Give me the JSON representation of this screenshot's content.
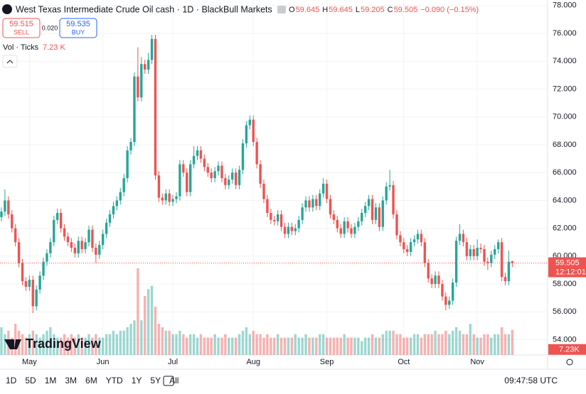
{
  "header": {
    "title": "West Texas Intermediate Crude Oil cash · 1D · BlackBull Markets",
    "ohlc": [
      {
        "key": "O",
        "value": "59.645"
      },
      {
        "key": "H",
        "value": "59.645"
      },
      {
        "key": "L",
        "value": "59.205"
      },
      {
        "key": "C",
        "value": "59.505"
      }
    ],
    "change": "−0.090 (−0.15%)",
    "sell_price": "59.515",
    "sell": "SELL",
    "spread": "0.020",
    "buy_price": "59.535",
    "buy": "BUY",
    "volume_legend": "Vol · Ticks",
    "volume_legend_value": "7.23 K",
    "logo": "TradingView"
  },
  "chart_data": {
    "type": "candlestick",
    "up_color": "#26a69a",
    "down_color": "#ef5350",
    "grid": true,
    "ylim": [
      52.9,
      78.4
    ],
    "yticks": [
      {
        "value": 54,
        "label": "54.000"
      },
      {
        "value": 56,
        "label": "56.000"
      },
      {
        "value": 58,
        "label": "58.000"
      },
      {
        "value": 60,
        "label": "60.000"
      },
      {
        "value": 62,
        "label": "62.000"
      },
      {
        "value": 64,
        "label": "64.000"
      },
      {
        "value": 66,
        "label": "66.000"
      },
      {
        "value": 68,
        "label": "68.000"
      },
      {
        "value": 70,
        "label": "70.000"
      },
      {
        "value": 72,
        "label": "72.000"
      },
      {
        "value": 74,
        "label": "74.000"
      },
      {
        "value": 76,
        "label": "76.000"
      },
      {
        "value": 78,
        "label": "78.000"
      }
    ],
    "xticks": [
      {
        "value": 8,
        "label": "May"
      },
      {
        "value": 29,
        "label": "Jun"
      },
      {
        "value": 49,
        "label": "Jul"
      },
      {
        "value": 72,
        "label": "Aug"
      },
      {
        "value": 93,
        "label": "Sep"
      },
      {
        "value": 115,
        "label": "Oct"
      },
      {
        "value": 136,
        "label": "Nov"
      }
    ],
    "ohlc": [
      [
        62.8,
        63.5,
        62.5,
        63.2
      ],
      [
        63.2,
        64.8,
        62.9,
        64.0
      ],
      [
        64.0,
        64.3,
        62.7,
        63.0
      ],
      [
        63.0,
        63.3,
        61.7,
        62.0
      ],
      [
        62.0,
        62.3,
        60.7,
        61.0
      ],
      [
        61.0,
        61.3,
        59.2,
        59.5
      ],
      [
        59.5,
        59.8,
        57.9,
        58.2
      ],
      [
        58.2,
        58.5,
        57.5,
        57.8
      ],
      [
        57.8,
        58.6,
        57.5,
        58.3
      ],
      [
        58.3,
        58.6,
        55.9,
        56.4
      ],
      [
        56.4,
        57.9,
        56.1,
        57.6
      ],
      [
        57.6,
        58.9,
        57.3,
        58.6
      ],
      [
        58.6,
        59.9,
        58.3,
        59.6
      ],
      [
        59.6,
        60.5,
        59.3,
        60.2
      ],
      [
        60.2,
        61.3,
        59.9,
        61.0
      ],
      [
        61.0,
        62.9,
        60.7,
        62.6
      ],
      [
        62.6,
        63.4,
        62.3,
        63.1
      ],
      [
        63.1,
        63.4,
        61.7,
        62.0
      ],
      [
        62.0,
        62.3,
        61.1,
        61.4
      ],
      [
        61.4,
        61.7,
        60.7,
        61.0
      ],
      [
        61.0,
        61.3,
        60.3,
        60.6
      ],
      [
        60.6,
        60.9,
        59.9,
        60.2
      ],
      [
        60.2,
        61.4,
        59.9,
        61.1
      ],
      [
        61.1,
        61.4,
        60.2,
        60.5
      ],
      [
        60.5,
        61.3,
        60.2,
        61.0
      ],
      [
        61.0,
        62.2,
        60.7,
        61.9
      ],
      [
        61.9,
        62.2,
        60.3,
        60.6
      ],
      [
        60.6,
        60.9,
        59.5,
        60.1
      ],
      [
        60.1,
        61.1,
        59.8,
        60.8
      ],
      [
        60.8,
        61.9,
        60.5,
        61.6
      ],
      [
        61.6,
        62.7,
        61.3,
        62.4
      ],
      [
        62.4,
        63.3,
        62.1,
        63.0
      ],
      [
        63.0,
        63.9,
        62.7,
        63.6
      ],
      [
        63.6,
        64.3,
        63.3,
        64.0
      ],
      [
        64.0,
        64.9,
        63.7,
        64.6
      ],
      [
        64.6,
        65.9,
        64.3,
        65.6
      ],
      [
        65.6,
        67.9,
        65.3,
        67.6
      ],
      [
        67.6,
        68.5,
        67.3,
        68.2
      ],
      [
        68.2,
        73.2,
        67.9,
        72.9
      ],
      [
        72.9,
        75.0,
        71.1,
        71.4
      ],
      [
        71.4,
        74.3,
        71.1,
        73.8
      ],
      [
        73.8,
        74.1,
        73.1,
        73.4
      ],
      [
        73.4,
        74.6,
        73.1,
        74.1
      ],
      [
        74.1,
        75.9,
        73.8,
        75.6
      ],
      [
        75.6,
        75.9,
        65.5,
        65.8
      ],
      [
        65.8,
        66.1,
        63.9,
        64.2
      ],
      [
        64.2,
        64.5,
        63.7,
        64.0
      ],
      [
        64.0,
        64.8,
        63.7,
        64.5
      ],
      [
        64.5,
        64.8,
        63.6,
        63.9
      ],
      [
        63.9,
        64.4,
        63.6,
        64.1
      ],
      [
        64.1,
        64.6,
        63.8,
        64.3
      ],
      [
        64.3,
        66.9,
        64.0,
        66.6
      ],
      [
        66.6,
        66.9,
        65.7,
        66.0
      ],
      [
        66.0,
        66.3,
        64.3,
        64.6
      ],
      [
        64.6,
        66.9,
        64.3,
        66.6
      ],
      [
        66.6,
        67.9,
        66.3,
        67.2
      ],
      [
        67.2,
        67.9,
        66.9,
        67.6
      ],
      [
        67.6,
        67.9,
        66.7,
        67.0
      ],
      [
        67.0,
        67.3,
        66.1,
        66.4
      ],
      [
        66.4,
        66.7,
        65.7,
        66.0
      ],
      [
        66.0,
        66.3,
        65.3,
        65.6
      ],
      [
        65.6,
        66.4,
        65.3,
        66.1
      ],
      [
        66.1,
        66.8,
        65.8,
        66.5
      ],
      [
        66.5,
        66.8,
        65.3,
        65.6
      ],
      [
        65.6,
        65.9,
        64.8,
        65.1
      ],
      [
        65.1,
        65.8,
        64.8,
        65.5
      ],
      [
        65.5,
        66.3,
        65.2,
        66.0
      ],
      [
        66.0,
        66.3,
        64.8,
        65.1
      ],
      [
        65.1,
        66.5,
        64.8,
        66.2
      ],
      [
        66.2,
        68.4,
        65.9,
        68.1
      ],
      [
        68.1,
        69.7,
        67.8,
        69.4
      ],
      [
        69.4,
        70.1,
        69.1,
        69.8
      ],
      [
        69.8,
        70.1,
        67.9,
        68.2
      ],
      [
        68.2,
        68.5,
        66.3,
        66.6
      ],
      [
        66.6,
        66.9,
        64.9,
        65.2
      ],
      [
        65.2,
        65.5,
        63.8,
        64.1
      ],
      [
        64.1,
        64.4,
        62.8,
        63.1
      ],
      [
        63.1,
        63.4,
        62.3,
        62.6
      ],
      [
        62.6,
        62.9,
        62.2,
        62.5
      ],
      [
        62.5,
        63.3,
        62.2,
        63.0
      ],
      [
        63.0,
        63.3,
        61.8,
        62.1
      ],
      [
        62.1,
        62.4,
        61.3,
        61.6
      ],
      [
        61.6,
        62.4,
        61.3,
        62.1
      ],
      [
        62.1,
        62.4,
        61.5,
        61.8
      ],
      [
        61.8,
        62.3,
        61.5,
        62.0
      ],
      [
        62.0,
        62.9,
        61.7,
        62.6
      ],
      [
        62.6,
        63.8,
        62.3,
        63.5
      ],
      [
        63.5,
        64.3,
        63.2,
        64.0
      ],
      [
        64.0,
        64.3,
        63.2,
        63.5
      ],
      [
        63.5,
        64.4,
        63.2,
        64.1
      ],
      [
        64.1,
        64.4,
        63.3,
        63.6
      ],
      [
        63.6,
        64.8,
        63.3,
        64.5
      ],
      [
        64.5,
        65.6,
        64.2,
        65.2
      ],
      [
        65.2,
        65.5,
        63.8,
        64.1
      ],
      [
        64.1,
        64.4,
        62.7,
        63.0
      ],
      [
        63.0,
        63.3,
        62.3,
        62.6
      ],
      [
        62.6,
        62.9,
        61.7,
        62.0
      ],
      [
        62.0,
        62.3,
        61.3,
        61.6
      ],
      [
        61.6,
        62.8,
        61.3,
        62.5
      ],
      [
        62.5,
        62.8,
        61.7,
        62.0
      ],
      [
        62.0,
        62.3,
        61.3,
        61.6
      ],
      [
        61.6,
        62.4,
        61.3,
        62.1
      ],
      [
        62.1,
        62.8,
        61.8,
        62.5
      ],
      [
        62.5,
        63.4,
        62.2,
        63.1
      ],
      [
        63.1,
        63.9,
        62.8,
        63.6
      ],
      [
        63.6,
        64.4,
        63.3,
        64.1
      ],
      [
        64.1,
        64.4,
        62.3,
        62.6
      ],
      [
        62.6,
        63.8,
        62.3,
        63.5
      ],
      [
        63.5,
        63.8,
        61.8,
        62.1
      ],
      [
        62.1,
        64.3,
        61.8,
        64.0
      ],
      [
        64.0,
        65.3,
        63.7,
        65.0
      ],
      [
        65.0,
        66.2,
        64.7,
        65.1
      ],
      [
        65.1,
        65.4,
        62.7,
        63.0
      ],
      [
        63.0,
        63.3,
        61.2,
        61.5
      ],
      [
        61.5,
        61.8,
        60.7,
        61.0
      ],
      [
        61.0,
        61.3,
        60.2,
        60.5
      ],
      [
        60.5,
        60.8,
        60.0,
        60.3
      ],
      [
        60.3,
        61.3,
        60.0,
        61.0
      ],
      [
        61.0,
        61.5,
        60.7,
        61.2
      ],
      [
        61.2,
        61.9,
        60.9,
        61.6
      ],
      [
        61.6,
        61.9,
        60.7,
        61.0
      ],
      [
        61.0,
        61.3,
        59.2,
        59.5
      ],
      [
        59.5,
        59.8,
        58.1,
        58.4
      ],
      [
        58.4,
        58.7,
        57.7,
        58.0
      ],
      [
        58.0,
        58.9,
        57.7,
        58.6
      ],
      [
        58.6,
        58.9,
        57.7,
        58.0
      ],
      [
        58.0,
        58.3,
        56.8,
        57.1
      ],
      [
        57.1,
        57.4,
        56.1,
        56.5
      ],
      [
        56.5,
        57.1,
        56.2,
        56.8
      ],
      [
        56.8,
        58.4,
        56.5,
        58.1
      ],
      [
        58.1,
        61.4,
        57.8,
        61.1
      ],
      [
        61.1,
        62.3,
        60.8,
        61.6
      ],
      [
        61.6,
        61.9,
        60.7,
        61.0
      ],
      [
        61.0,
        61.3,
        59.7,
        60.0
      ],
      [
        60.0,
        60.8,
        59.7,
        60.5
      ],
      [
        60.5,
        60.8,
        59.7,
        60.0
      ],
      [
        60.0,
        61.2,
        59.7,
        60.6
      ],
      [
        60.6,
        60.9,
        60.2,
        60.5
      ],
      [
        60.5,
        60.8,
        59.3,
        59.6
      ],
      [
        59.6,
        59.9,
        59.0,
        59.5
      ],
      [
        59.5,
        60.4,
        59.2,
        60.1
      ],
      [
        60.1,
        60.8,
        59.8,
        60.5
      ],
      [
        60.5,
        61.2,
        60.2,
        61.0
      ],
      [
        61.0,
        61.3,
        58.2,
        58.5
      ],
      [
        58.5,
        58.8,
        57.9,
        58.2
      ],
      [
        58.2,
        60.4,
        57.9,
        59.595
      ],
      [
        59.645,
        59.645,
        59.205,
        59.505
      ]
    ],
    "volume": [
      8,
      6,
      7,
      5,
      9,
      7,
      6,
      5,
      6,
      7,
      6,
      5,
      6,
      7,
      8,
      6,
      5,
      5,
      6,
      5,
      6,
      5,
      6,
      5,
      5,
      6,
      5,
      6,
      5,
      5,
      6,
      6,
      7,
      6,
      7,
      7,
      8,
      9,
      10,
      25,
      10,
      17,
      19,
      20,
      14,
      9,
      8,
      7,
      7,
      6,
      6,
      7,
      6,
      5,
      6,
      6,
      5,
      6,
      5,
      5,
      5,
      6,
      5,
      5,
      6,
      5,
      5,
      5,
      6,
      7,
      8,
      6,
      7,
      6,
      6,
      5,
      6,
      5,
      5,
      6,
      5,
      5,
      5,
      5,
      6,
      5,
      5,
      6,
      5,
      5,
      5,
      6,
      6,
      5,
      5,
      5,
      5,
      5,
      6,
      5,
      5,
      5,
      5,
      4,
      5,
      5,
      6,
      5,
      5,
      6,
      7,
      7,
      7,
      6,
      6,
      5,
      5,
      5,
      6,
      6,
      5,
      6,
      6,
      6,
      7,
      6,
      6,
      7,
      6,
      7,
      8,
      7,
      6,
      6,
      9,
      6,
      5,
      5,
      6,
      6,
      5,
      6,
      6,
      8,
      6,
      6,
      7.23
    ],
    "last_price_label": "59.505",
    "countdown": "12:12:01",
    "last_volume_label": "7.23K"
  },
  "toolbar": {
    "ranges": [
      "1D",
      "5D",
      "1M",
      "3M",
      "6M",
      "YTD",
      "1Y",
      "5Y",
      "All"
    ],
    "clock": "09:47:58 UTC"
  }
}
